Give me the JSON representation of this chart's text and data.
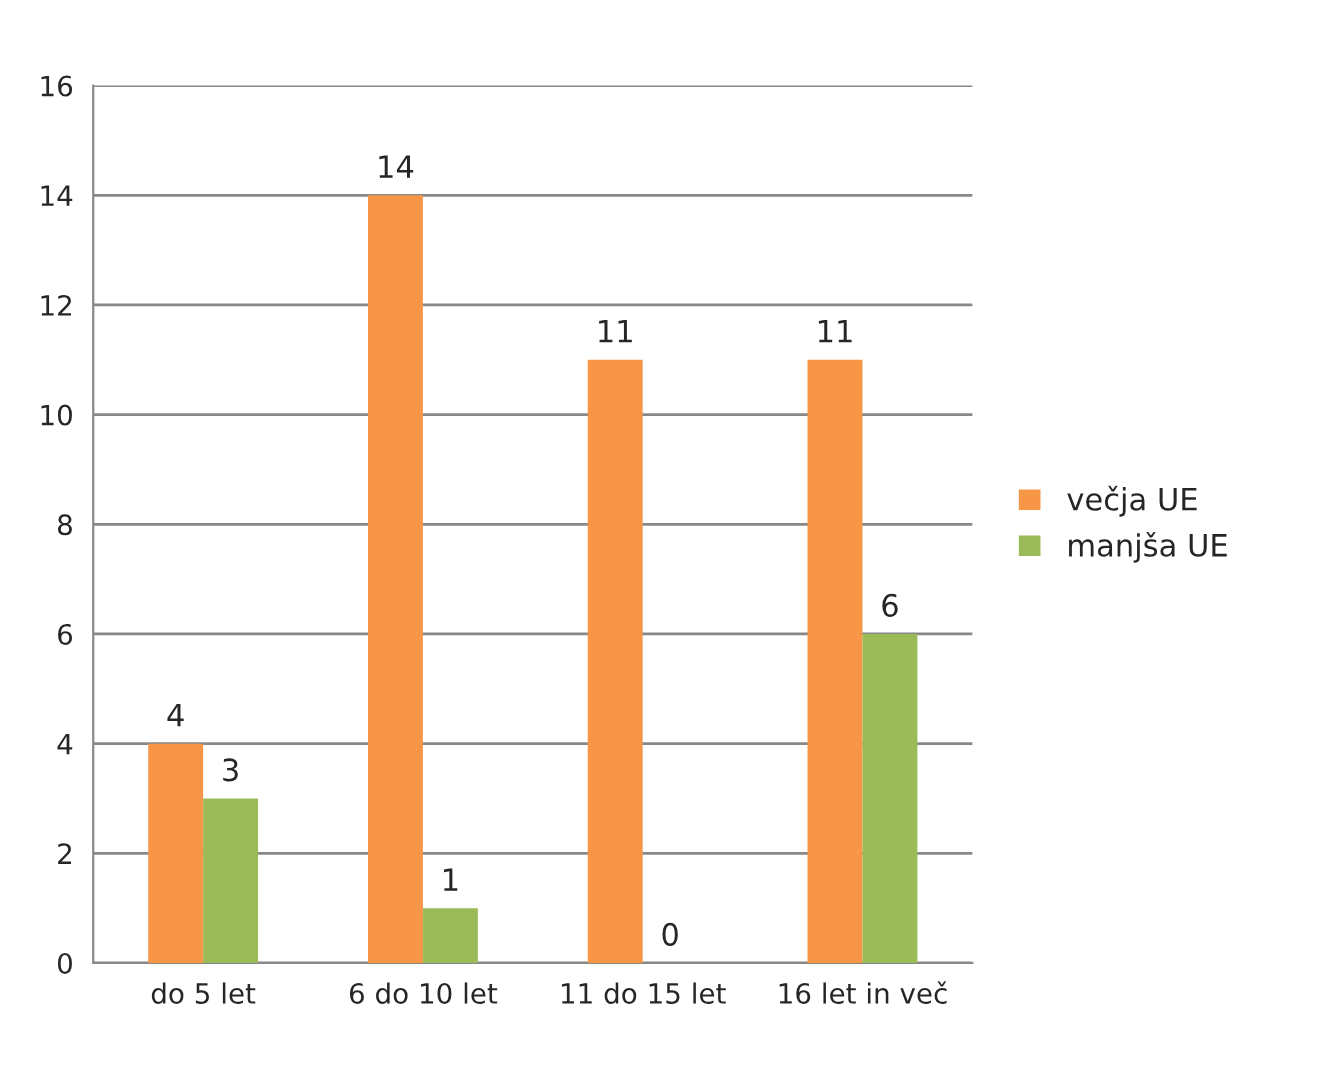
{
  "chart_data": {
    "type": "bar",
    "categories": [
      "do 5 let",
      "6 do 10 let",
      "11 do 15 let",
      "16 let in več"
    ],
    "series": [
      {
        "name": "večja UE",
        "color": "#f79646",
        "values": [
          4,
          14,
          11,
          11
        ]
      },
      {
        "name": "manjša UE",
        "color": "#9bbb59",
        "values": [
          3,
          1,
          0,
          6
        ]
      }
    ],
    "ylim": [
      0,
      16
    ],
    "yticks": [
      0,
      2,
      4,
      6,
      8,
      10,
      12,
      14,
      16
    ],
    "grid": "y",
    "legend": "right",
    "data_labels": true
  }
}
